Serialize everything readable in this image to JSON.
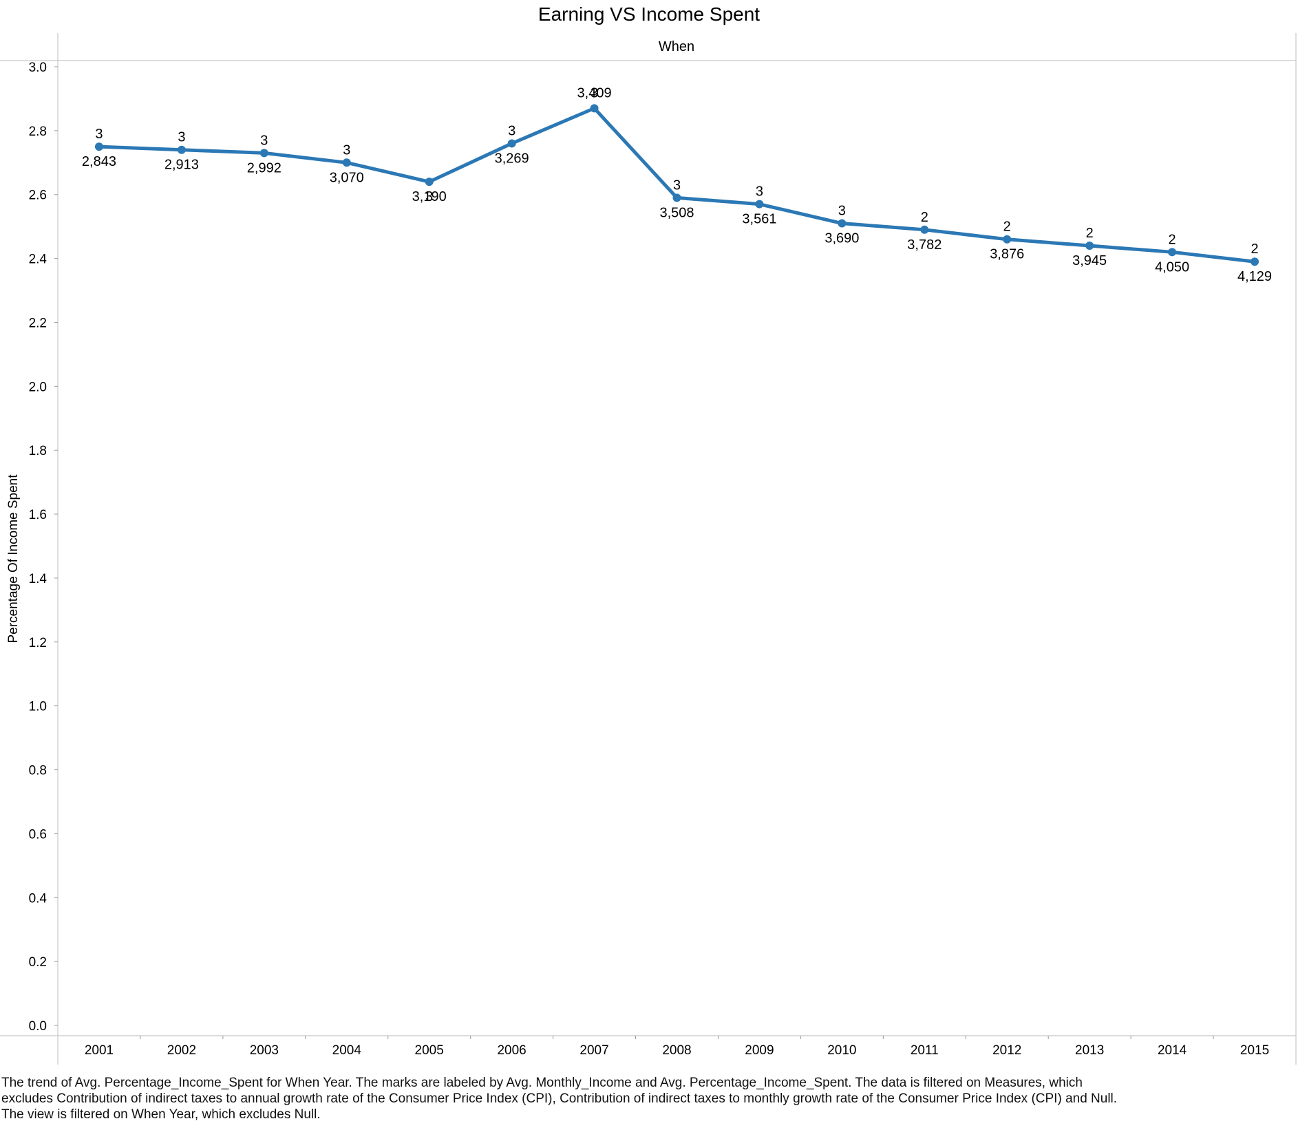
{
  "chart_data": {
    "type": "line",
    "title": "Earning VS Income Spent",
    "header": "When",
    "ylabel": "Percentage Of Income Spent",
    "ylim": [
      0,
      3.0
    ],
    "yticks": [
      "0.0",
      "0.2",
      "0.4",
      "0.6",
      "0.8",
      "1.0",
      "1.2",
      "1.4",
      "1.6",
      "1.8",
      "2.0",
      "2.2",
      "2.4",
      "2.6",
      "2.8",
      "3.0"
    ],
    "categories": [
      "2001",
      "2002",
      "2003",
      "2004",
      "2005",
      "2006",
      "2007",
      "2008",
      "2009",
      "2010",
      "2011",
      "2012",
      "2013",
      "2014",
      "2015"
    ],
    "series": [
      {
        "values": [
          2.75,
          2.74,
          2.73,
          2.7,
          2.64,
          2.76,
          2.87,
          2.59,
          2.57,
          2.51,
          2.49,
          2.46,
          2.44,
          2.42,
          2.39
        ],
        "income_labels": [
          "2,843",
          "2,913",
          "2,992",
          "3,070",
          "3,190",
          "3,269",
          "3,409",
          "3,508",
          "3,561",
          "3,690",
          "3,782",
          "3,876",
          "3,945",
          "4,050",
          "4,129"
        ],
        "pct_labels": [
          "3",
          "3",
          "3",
          "3",
          "3",
          "3",
          "3",
          "3",
          "3",
          "3",
          "2",
          "2",
          "2",
          "2",
          "2"
        ],
        "color": "#2b78b5"
      }
    ],
    "grid": false
  },
  "caption": {
    "line1": "The trend of Avg. Percentage_Income_Spent for When Year.  The marks are labeled by Avg. Monthly_Income and Avg. Percentage_Income_Spent. The data is filtered on Measures, which",
    "line2": "excludes Contribution of indirect taxes to annual growth rate of the Consumer Price Index (CPI), Contribution of indirect taxes to monthly growth rate of the Consumer Price Index (CPI) and Null.",
    "line3": "The view is filtered on When Year, which excludes Null."
  }
}
